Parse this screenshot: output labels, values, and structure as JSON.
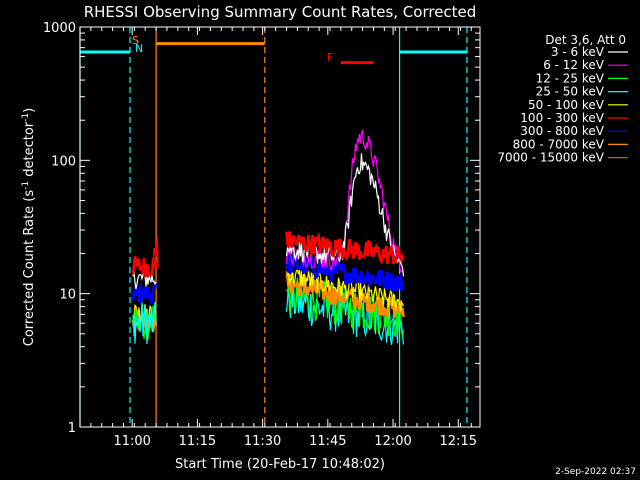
{
  "chart_data": {
    "type": "line",
    "title": "RHESSI Observing Summary Count Rates, Corrected",
    "xlabel": "Start Time (20-Feb-17 10:48:02)",
    "ylabel": "Corrected Count Rate (s⁻¹ detector⁻¹)",
    "ylabel_parts": {
      "main": "Corrected Count Rate (s",
      "sup1": "-1",
      "mid": " detector",
      "sup2": "-1",
      "end": ")"
    },
    "yscale": "log",
    "ylim": [
      1,
      1000
    ],
    "xlim_minutes": [
      0,
      92
    ],
    "x_unit": "minutes after 10:48:02",
    "x_ticks": [
      {
        "label": "11:00",
        "at": 12
      },
      {
        "label": "11:15",
        "at": 27
      },
      {
        "label": "11:30",
        "at": 42
      },
      {
        "label": "11:45",
        "at": 57
      },
      {
        "label": "12:00",
        "at": 72
      },
      {
        "label": "12:15",
        "at": 87
      }
    ],
    "y_ticks": [
      {
        "label": "1",
        "value": 1
      },
      {
        "label": "10",
        "value": 10
      },
      {
        "label": "100",
        "value": 100
      },
      {
        "label": "1000",
        "value": 1000
      }
    ],
    "legend_header": "Det 3,6, Att 0",
    "legend_position": "right",
    "series": [
      {
        "name": "3 - 6 keV",
        "color": "#ffffff"
      },
      {
        "name": "6 - 12 keV",
        "color": "#ff00ff"
      },
      {
        "name": "12 - 25 keV",
        "color": "#00ff00"
      },
      {
        "name": "25 - 50 keV",
        "color": "#00ffff"
      },
      {
        "name": "50 - 100 keV",
        "color": "#ffff00"
      },
      {
        "name": "100 - 300 keV",
        "color": "#ff0000"
      },
      {
        "name": "300 - 800 keV",
        "color": "#0000ff"
      },
      {
        "name": "800 - 7000 keV",
        "color": "#ff8c00"
      },
      {
        "name": "7000 - 15000 keV",
        "color": "#808000"
      }
    ],
    "data_segments": [
      {
        "x_range": [
          12.2,
          17.5
        ],
        "levels": [
          {
            "series": "800 - 7000 keV",
            "y": 6
          },
          {
            "series": "50 - 100 keV",
            "y": 7
          },
          {
            "series": "12 - 25 keV",
            "y": 6.5
          },
          {
            "series": "25 - 50 keV",
            "y": 6
          },
          {
            "series": "300 - 800 keV",
            "y": 10
          },
          {
            "series": "3 - 6 keV",
            "y": 13
          },
          {
            "series": "100 - 300 keV",
            "y": 16
          }
        ]
      },
      {
        "x_range": [
          47.5,
          74.5
        ],
        "levels": [
          {
            "series": "25 - 50 keV",
            "y_start": 9,
            "y_end": 5.5
          },
          {
            "series": "12 - 25 keV",
            "y_start": 10,
            "y_end": 6.5
          },
          {
            "series": "800 - 7000 keV",
            "y_start": 12,
            "y_end": 7.5
          },
          {
            "series": "50 - 100 keV",
            "y_start": 14,
            "y_end": 8.5
          },
          {
            "series": "300 - 800 keV",
            "y_start": 17,
            "y_end": 12
          },
          {
            "series": "6 - 12 keV",
            "y_start": 20,
            "y_end": 15,
            "peak_x": 64.5,
            "peak_y": 150
          },
          {
            "series": "3 - 6 keV",
            "y_start": 22,
            "y_end": 15,
            "peak_x": 64.5,
            "peak_y": 95
          },
          {
            "series": "100 - 300 keV",
            "y_start": 25,
            "y_end": 19
          }
        ]
      }
    ],
    "annotations": [
      {
        "label": "S",
        "color": "#ff8c00"
      },
      {
        "label": "N",
        "color": "#00ffff"
      },
      {
        "label": "F",
        "color": "#ff0000"
      }
    ],
    "state_bars": [
      {
        "color": "#00ffff",
        "x_start": -2,
        "x_end": 11.5,
        "y": 650
      },
      {
        "color": "#ff8c00",
        "x_start": 17.5,
        "x_end": 42.5,
        "y": 750
      },
      {
        "color": "#ff0000",
        "x_start": 60,
        "x_end": 67.5,
        "y": 540
      },
      {
        "color": "#00ffff",
        "x_start": 73.5,
        "x_end": 89,
        "y": 650
      }
    ],
    "markers": [
      {
        "x": 0,
        "color": "#00ffff",
        "style": "solid"
      },
      {
        "x": 11.5,
        "color": "#00ffff",
        "style": "dashed"
      },
      {
        "x": 17.5,
        "color": "#ff8c00",
        "style": "solid"
      },
      {
        "x": 42.5,
        "color": "#ff8c00",
        "style": "dashed"
      },
      {
        "x": 73.5,
        "color": "#00ffff",
        "style": "solid"
      },
      {
        "x": 89,
        "color": "#00ffff",
        "style": "dashed"
      }
    ],
    "grid": false
  },
  "footer_timestamp": "2-Sep-2022 02:37"
}
